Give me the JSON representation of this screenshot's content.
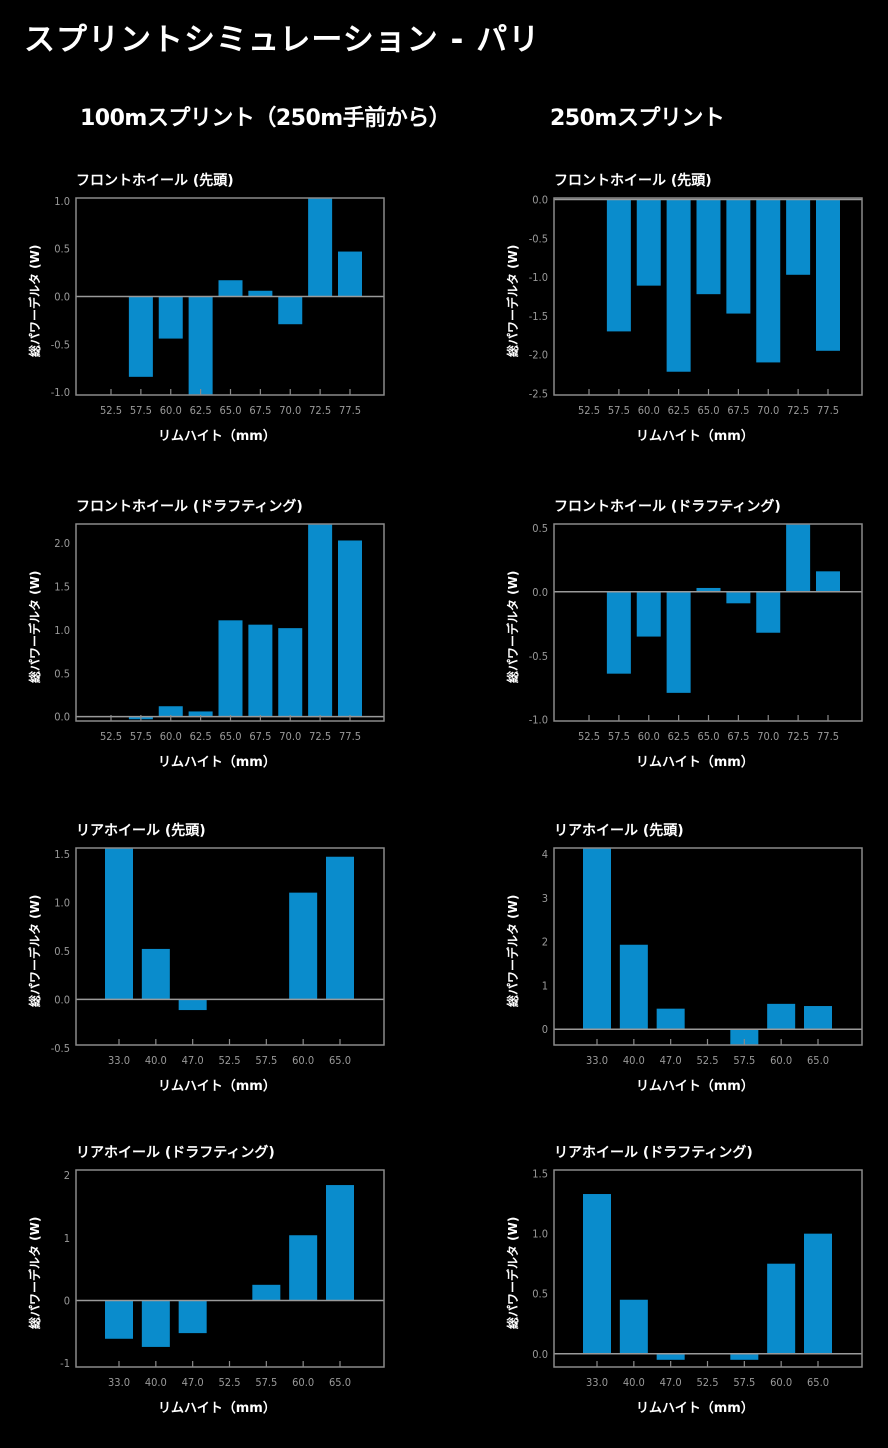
{
  "page": {
    "title": "スプリントシミュレーション - パリ",
    "columns": [
      "100mスプリント（250m手前から）",
      "250mスプリント"
    ]
  },
  "colors": {
    "bar": "#0a8ccc",
    "frame": "#8a8a8a",
    "tick_text": "#9a9a9a",
    "background": "#000000"
  },
  "chart_data": [
    {
      "type": "bar",
      "column": "100mスプリント（250m手前から）",
      "title": "フロントホイール (先頭)",
      "xlabel": "リムハイト（mm）",
      "ylabel": "総パワーデルタ (W)",
      "categories": [
        "52.5",
        "57.5",
        "60.0",
        "62.5",
        "65.0",
        "67.5",
        "70.0",
        "72.5",
        "77.5"
      ],
      "values": [
        0,
        -0.84,
        -0.44,
        -1.05,
        0.17,
        0.06,
        -0.29,
        1.05,
        0.47
      ],
      "yticks": [
        -1.0,
        -0.5,
        0.0,
        0.5,
        1.0
      ],
      "ytick_labels": [
        "-1.0",
        "-0.5",
        "0.0",
        "0.5",
        "1.0"
      ],
      "ylim": [
        -1.03,
        1.03
      ],
      "grid": false
    },
    {
      "type": "bar",
      "column": "250mスプリント",
      "title": "フロントホイール (先頭)",
      "xlabel": "リムハイト（mm）",
      "ylabel": "総パワーデルタ (W)",
      "categories": [
        "52.5",
        "57.5",
        "60.0",
        "62.5",
        "65.0",
        "67.5",
        "70.0",
        "72.5",
        "77.5"
      ],
      "values": [
        0,
        -1.7,
        -1.11,
        -2.22,
        -1.22,
        -1.47,
        -2.1,
        -0.97,
        -1.95
      ],
      "yticks": [
        -2.5,
        -2.0,
        -1.5,
        -1.0,
        -0.5,
        0.0
      ],
      "ytick_labels": [
        "-2.5",
        "-2.0",
        "-1.5",
        "-1.0",
        "-0.5",
        "0.0"
      ],
      "ylim": [
        -2.52,
        0.02
      ],
      "grid": false
    },
    {
      "type": "bar",
      "column": "100mスプリント（250m手前から）",
      "title": "フロントホイール (ドラフティング)",
      "xlabel": "リムハイト（mm）",
      "ylabel": "総パワーデルタ (W)",
      "categories": [
        "52.5",
        "57.5",
        "60.0",
        "62.5",
        "65.0",
        "67.5",
        "70.0",
        "72.5",
        "77.5"
      ],
      "values": [
        0,
        -0.03,
        0.12,
        0.06,
        1.11,
        1.06,
        1.02,
        2.3,
        2.03
      ],
      "yticks": [
        0.0,
        0.5,
        1.0,
        1.5,
        2.0
      ],
      "ytick_labels": [
        "0.0",
        "0.5",
        "1.0",
        "1.5",
        "2.0"
      ],
      "ylim": [
        -0.05,
        2.22
      ],
      "grid": false
    },
    {
      "type": "bar",
      "column": "250mスプリント",
      "title": "フロントホイール (ドラフティング)",
      "xlabel": "リムハイト（mm）",
      "ylabel": "総パワーデルタ (W)",
      "categories": [
        "52.5",
        "57.5",
        "60.0",
        "62.5",
        "65.0",
        "67.5",
        "70.0",
        "72.5",
        "77.5"
      ],
      "values": [
        0,
        -0.64,
        -0.35,
        -0.79,
        0.03,
        -0.09,
        -0.32,
        0.6,
        0.16
      ],
      "yticks": [
        -1.0,
        -0.5,
        0.0,
        0.5
      ],
      "ytick_labels": [
        "-1.0",
        "-0.5",
        "0.0",
        "0.5"
      ],
      "ylim": [
        -1.01,
        0.53
      ],
      "grid": false
    },
    {
      "type": "bar",
      "column": "100mスプリント（250m手前から）",
      "title": "リアホイール (先頭)",
      "xlabel": "リムハイト（mm）",
      "ylabel": "総パワーデルタ (W)",
      "categories": [
        "33.0",
        "40.0",
        "47.0",
        "52.5",
        "57.5",
        "60.0",
        "65.0"
      ],
      "values": [
        1.6,
        0.52,
        -0.11,
        0,
        0,
        1.1,
        1.47
      ],
      "yticks": [
        -0.5,
        0.0,
        0.5,
        1.0,
        1.5
      ],
      "ytick_labels": [
        "-0.5",
        "0.0",
        "0.5",
        "1.0",
        "1.5"
      ],
      "ylim": [
        -0.47,
        1.56
      ],
      "grid": false
    },
    {
      "type": "bar",
      "column": "250mスプリント",
      "title": "リアホイール (先頭)",
      "xlabel": "リムハイト（mm）",
      "ylabel": "総パワーデルタ (W)",
      "categories": [
        "33.0",
        "40.0",
        "47.0",
        "52.5",
        "57.5",
        "60.0",
        "65.0"
      ],
      "values": [
        4.2,
        1.93,
        0.47,
        0,
        -0.4,
        0.58,
        0.53
      ],
      "yticks": [
        0,
        1,
        2,
        3,
        4
      ],
      "ytick_labels": [
        "0",
        "1",
        "2",
        "3",
        "4"
      ],
      "ylim": [
        -0.36,
        4.14
      ],
      "grid": false
    },
    {
      "type": "bar",
      "column": "100mスプリント（250m手前から）",
      "title": "リアホイール (ドラフティング)",
      "xlabel": "リムハイト（mm）",
      "ylabel": "総パワーデルタ (W)",
      "categories": [
        "33.0",
        "40.0",
        "47.0",
        "52.5",
        "57.5",
        "60.0",
        "65.0"
      ],
      "values": [
        -0.61,
        -0.74,
        -0.52,
        0,
        0.25,
        1.04,
        1.84
      ],
      "yticks": [
        -1,
        0,
        1,
        2
      ],
      "ytick_labels": [
        "-1",
        "0",
        "1",
        "2"
      ],
      "ylim": [
        -1.06,
        2.08
      ],
      "grid": false
    },
    {
      "type": "bar",
      "column": "250mスプリント",
      "title": "リアホイール (ドラフティング)",
      "xlabel": "リムハイト（mm）",
      "ylabel": "総パワーデルタ (W)",
      "categories": [
        "33.0",
        "40.0",
        "47.0",
        "52.5",
        "57.5",
        "60.0",
        "65.0"
      ],
      "values": [
        1.33,
        0.45,
        -0.05,
        0,
        -0.05,
        0.75,
        1.0
      ],
      "yticks": [
        0.0,
        0.5,
        1.0,
        1.5
      ],
      "ytick_labels": [
        "0.0",
        "0.5",
        "1.0",
        "1.5"
      ],
      "ylim": [
        -0.11,
        1.53
      ],
      "grid": false
    }
  ]
}
